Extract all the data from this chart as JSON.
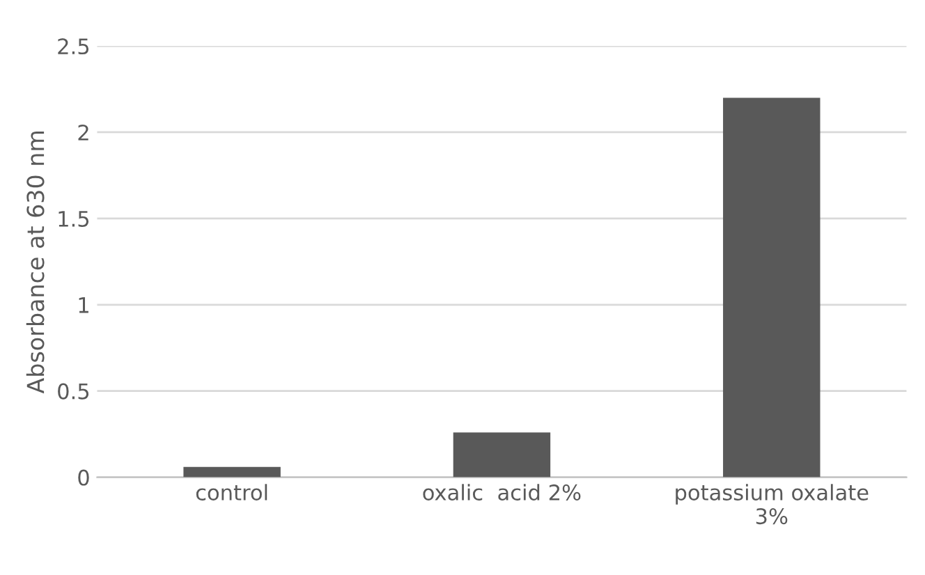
{
  "chart_data": {
    "type": "bar",
    "ylabel": "Absorbance at 630 nm",
    "categories": [
      "control",
      "oxalic  acid 2%",
      "potassium oxalate\n3%"
    ],
    "values": [
      0.06,
      0.26,
      2.2
    ],
    "color": "#595959",
    "ylim": [
      0,
      2.5
    ],
    "yticks": [
      0,
      0.5,
      1,
      1.5,
      2,
      2.5
    ],
    "grid": "y"
  }
}
